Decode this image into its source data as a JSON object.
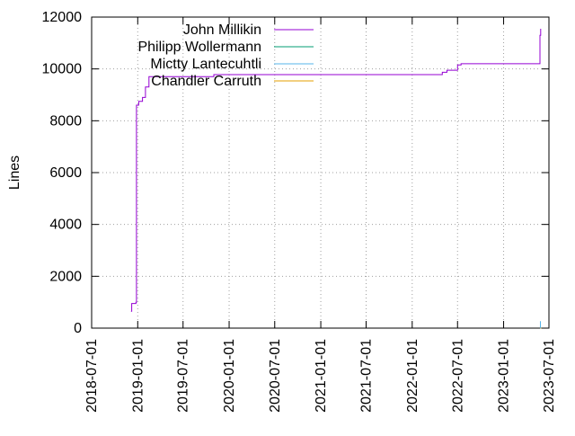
{
  "chart_data": {
    "type": "line",
    "title": "",
    "xlabel": "",
    "ylabel": "Lines",
    "xlim": [
      "2018-07-01",
      "2023-07-01"
    ],
    "ylim": [
      0,
      12000
    ],
    "x_ticks": [
      "2018-07-01",
      "2019-01-01",
      "2019-07-01",
      "2020-01-01",
      "2020-07-01",
      "2021-01-01",
      "2021-07-01",
      "2022-01-01",
      "2022-07-01",
      "2023-01-01",
      "2023-07-01"
    ],
    "y_ticks": [
      0,
      2000,
      4000,
      6000,
      8000,
      10000,
      12000
    ],
    "grid": true,
    "legend_position": "top-left",
    "series": [
      {
        "name": "John Millikin",
        "color": "#9400d3",
        "points": [
          [
            "2018-12-05",
            650
          ],
          [
            "2018-12-08",
            950
          ],
          [
            "2018-12-25",
            1000
          ],
          [
            "2018-12-27",
            8600
          ],
          [
            "2019-01-05",
            8750
          ],
          [
            "2019-01-20",
            8900
          ],
          [
            "2019-02-01",
            9300
          ],
          [
            "2019-02-15",
            9700
          ],
          [
            "2019-06-01",
            9700
          ],
          [
            "2019-11-01",
            9780
          ],
          [
            "2022-05-01",
            9870
          ],
          [
            "2022-05-20",
            9950
          ],
          [
            "2022-07-01",
            10150
          ],
          [
            "2022-07-15",
            10200
          ],
          [
            "2023-05-25",
            10200
          ],
          [
            "2023-05-26",
            11300
          ],
          [
            "2023-05-29",
            11550
          ]
        ]
      },
      {
        "name": "Philipp Wollermann",
        "color": "#009e73",
        "points": [
          [
            "2023-05-28",
            0
          ],
          [
            "2023-05-29",
            20
          ]
        ]
      },
      {
        "name": "Mictty Lantecuhtli",
        "color": "#56b4e9",
        "points": [
          [
            "2023-05-27",
            0
          ],
          [
            "2023-05-28",
            270
          ]
        ]
      },
      {
        "name": "Chandler Carruth",
        "color": "#e69f00",
        "points": [
          [
            "2023-05-29",
            0
          ],
          [
            "2023-05-30",
            10
          ]
        ]
      }
    ]
  }
}
